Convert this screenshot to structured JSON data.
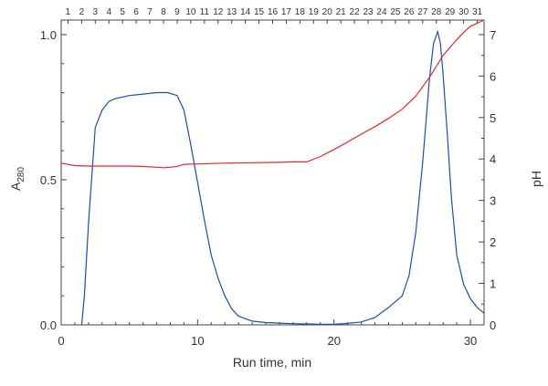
{
  "chart_data": {
    "type": "line",
    "xlabel": "Run time, min",
    "ylabel_main": "A",
    "ylabel_sub": "280",
    "y2label": "pH",
    "xlim": [
      0,
      31
    ],
    "ylim": [
      0,
      1.05
    ],
    "y2lim": [
      0,
      7.35
    ],
    "x_ticks": [
      0,
      10,
      20,
      30
    ],
    "y_ticks": [
      0.0,
      0.5,
      1.0
    ],
    "y_tick_labels": [
      "0.0",
      "0.5",
      "1.0"
    ],
    "y2_ticks": [
      0,
      1,
      2,
      3,
      4,
      5,
      6,
      7
    ],
    "top_ticks": [
      1,
      2,
      3,
      4,
      5,
      6,
      7,
      8,
      9,
      10,
      11,
      12,
      13,
      14,
      15,
      16,
      17,
      18,
      19,
      20,
      21,
      22,
      23,
      24,
      25,
      26,
      27,
      28,
      29,
      30,
      31
    ],
    "grid": false,
    "colors": {
      "absorbance": "#1f4fa8",
      "ph": "#e8262b",
      "axis": "#444444"
    },
    "series": [
      {
        "axis": "left",
        "x": [
          1.5,
          1.7,
          2.0,
          2.5,
          3.0,
          3.5,
          4.0,
          5.0,
          6.0,
          7.0,
          7.8,
          8.5,
          9.0,
          9.5,
          10.0,
          10.5,
          11.0,
          11.5,
          12.0,
          12.5,
          13.0,
          14.0,
          15.0,
          16.0,
          17.0,
          18.0,
          19.0,
          20.0,
          21.0,
          22.0,
          23.0,
          24.0,
          25.0,
          25.5,
          26.0,
          26.5,
          27.0,
          27.3,
          27.6,
          27.8,
          28.0,
          28.3,
          28.6,
          29.0,
          29.5,
          30.0,
          30.5,
          31.0
        ],
        "y": [
          0.0,
          0.1,
          0.35,
          0.68,
          0.74,
          0.77,
          0.78,
          0.79,
          0.795,
          0.8,
          0.8,
          0.79,
          0.74,
          0.62,
          0.49,
          0.36,
          0.24,
          0.16,
          0.1,
          0.055,
          0.03,
          0.013,
          0.008,
          0.006,
          0.004,
          0.003,
          0.002,
          0.002,
          0.005,
          0.01,
          0.025,
          0.06,
          0.1,
          0.17,
          0.32,
          0.56,
          0.85,
          0.97,
          1.01,
          0.97,
          0.86,
          0.66,
          0.44,
          0.24,
          0.14,
          0.09,
          0.06,
          0.04
        ]
      },
      {
        "axis": "right",
        "x": [
          0,
          1,
          2,
          3,
          4,
          5,
          6,
          7,
          7.5,
          8,
          8.5,
          9,
          10,
          12,
          14,
          16,
          17,
          18,
          19,
          20,
          21,
          22,
          23,
          24,
          25,
          26,
          27,
          28,
          29,
          29.5,
          30,
          31
        ],
        "y": [
          3.9,
          3.84,
          3.83,
          3.83,
          3.83,
          3.83,
          3.82,
          3.8,
          3.79,
          3.8,
          3.82,
          3.87,
          3.88,
          3.9,
          3.91,
          3.92,
          3.93,
          3.93,
          4.06,
          4.23,
          4.41,
          4.6,
          4.78,
          4.98,
          5.2,
          5.52,
          5.97,
          6.5,
          6.88,
          7.05,
          7.2,
          7.35
        ]
      }
    ]
  }
}
